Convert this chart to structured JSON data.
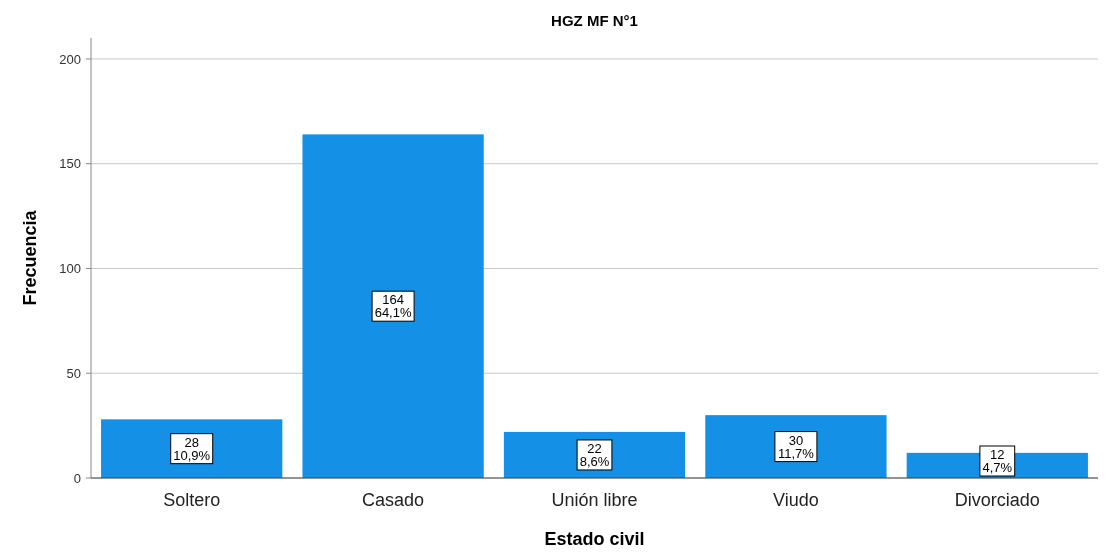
{
  "chart_data": {
    "type": "bar",
    "title": "HGZ MF N°1",
    "xlabel": "Estado civil",
    "ylabel": "Frecuencia",
    "categories": [
      "Soltero",
      "Casado",
      "Unión libre",
      "Viudo",
      "Divorciado"
    ],
    "values": [
      28,
      164,
      22,
      30,
      12
    ],
    "value_labels": [
      "28\n10,9%",
      "164\n64,1%",
      "22\n8,6%",
      "30\n11,7%",
      "12\n4,7%"
    ],
    "color": "#1490e6",
    "ylim": [
      0,
      210
    ],
    "yticks": [
      0,
      50,
      100,
      150,
      200
    ],
    "grid": "y"
  }
}
